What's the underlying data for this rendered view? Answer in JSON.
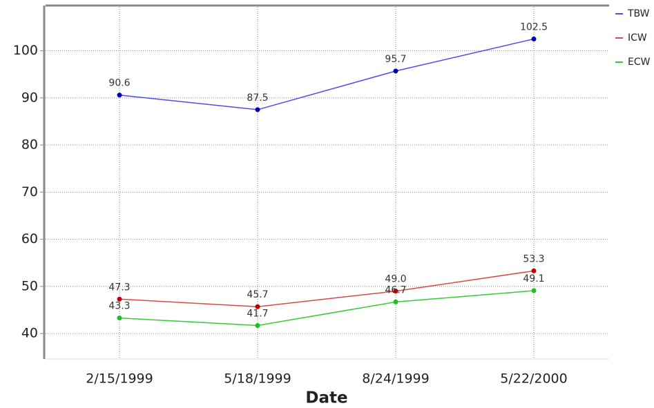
{
  "chart_data": {
    "type": "line",
    "x_label": "Date",
    "categories": [
      "2/15/1999",
      "5/18/1999",
      "8/24/1999",
      "5/22/2000"
    ],
    "series": [
      {
        "name": "TBW",
        "color": "#4b4bf0",
        "marker_color": "#0000b0",
        "values": [
          90.6,
          87.5,
          95.7,
          102.5
        ]
      },
      {
        "name": "ICW",
        "color": "#d84848",
        "marker_color": "#c00000",
        "values": [
          47.3,
          45.7,
          49,
          53.3
        ],
        "value_labels": [
          "47.3",
          "45.7",
          "49.0",
          "53.3"
        ]
      },
      {
        "name": "ECW",
        "color": "#33cc33",
        "marker_color": "#22bb22",
        "values": [
          43.3,
          41.7,
          46.7,
          49.1
        ]
      }
    ],
    "ylim": [
      34.6,
      109.6
    ],
    "yticks": [
      40,
      50,
      60,
      70,
      80,
      90,
      100
    ],
    "grid": true,
    "legend": "right"
  }
}
